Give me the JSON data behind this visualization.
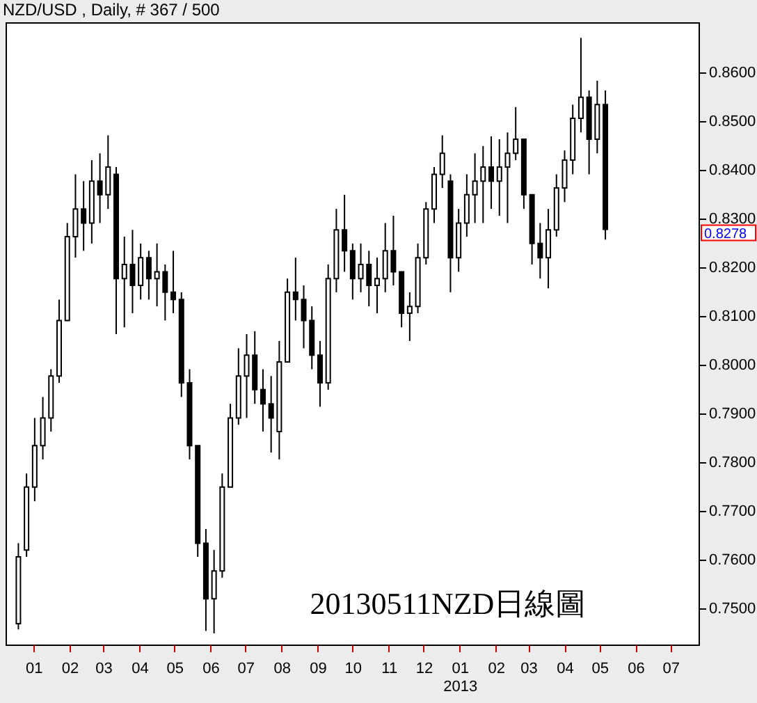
{
  "chart_data": {
    "type": "candlestick",
    "title": "NZD/USD , Daily, # 367 / 500",
    "color": "#000000",
    "x": [
      "2011-12-19",
      "2011-12-26",
      "2012-01-02",
      "2012-01-09",
      "2012-01-16",
      "2012-01-23",
      "2012-01-30",
      "2012-02-06",
      "2012-02-13",
      "2012-02-20",
      "2012-02-27",
      "2012-03-05",
      "2012-03-12",
      "2012-03-19",
      "2012-03-26",
      "2012-04-02",
      "2012-04-09",
      "2012-04-16",
      "2012-04-23",
      "2012-04-30",
      "2012-05-07",
      "2012-05-14",
      "2012-05-21",
      "2012-05-28",
      "2012-06-04",
      "2012-06-11",
      "2012-06-18",
      "2012-06-25",
      "2012-07-02",
      "2012-07-09",
      "2012-07-16",
      "2012-07-23",
      "2012-07-30",
      "2012-08-06",
      "2012-08-13",
      "2012-08-20",
      "2012-08-27",
      "2012-09-03",
      "2012-09-10",
      "2012-09-17",
      "2012-09-24",
      "2012-10-01",
      "2012-10-08",
      "2012-10-15",
      "2012-10-22",
      "2012-10-29",
      "2012-11-05",
      "2012-11-12",
      "2012-11-19",
      "2012-11-26",
      "2012-12-03",
      "2012-12-10",
      "2012-12-17",
      "2012-12-24",
      "2012-12-31",
      "2013-01-07",
      "2013-01-14",
      "2013-01-21",
      "2013-01-28",
      "2013-02-04",
      "2013-02-11",
      "2013-02-18",
      "2013-02-25",
      "2013-03-04",
      "2013-03-11",
      "2013-03-18",
      "2013-03-25",
      "2013-04-01",
      "2013-04-08",
      "2013-04-15",
      "2013-04-22",
      "2013-04-29",
      "2013-05-06"
    ],
    "ohlc": [
      [
        0.7469,
        0.7634,
        0.7457,
        0.7606
      ],
      [
        0.762,
        0.7777,
        0.7606,
        0.7749
      ],
      [
        0.7749,
        0.7891,
        0.772,
        0.7834
      ],
      [
        0.7834,
        0.7934,
        0.7806,
        0.7891
      ],
      [
        0.7891,
        0.7991,
        0.7863,
        0.7977
      ],
      [
        0.7977,
        0.8134,
        0.7963,
        0.8091
      ],
      [
        0.8091,
        0.8291,
        0.8091,
        0.8263
      ],
      [
        0.8263,
        0.8391,
        0.822,
        0.832
      ],
      [
        0.832,
        0.8377,
        0.8234,
        0.8291
      ],
      [
        0.8291,
        0.842,
        0.8249,
        0.8377
      ],
      [
        0.8377,
        0.8434,
        0.8291,
        0.8349
      ],
      [
        0.8349,
        0.8471,
        0.832,
        0.8406
      ],
      [
        0.8391,
        0.8406,
        0.8063,
        0.8177
      ],
      [
        0.8177,
        0.8263,
        0.8077,
        0.8206
      ],
      [
        0.8206,
        0.8277,
        0.8106,
        0.8163
      ],
      [
        0.8163,
        0.8249,
        0.8134,
        0.822
      ],
      [
        0.822,
        0.8234,
        0.8134,
        0.8177
      ],
      [
        0.8177,
        0.8249,
        0.812,
        0.8191
      ],
      [
        0.8191,
        0.8206,
        0.8091,
        0.8149
      ],
      [
        0.8149,
        0.8234,
        0.8106,
        0.8134
      ],
      [
        0.8134,
        0.8149,
        0.7934,
        0.7963
      ],
      [
        0.7963,
        0.7991,
        0.7806,
        0.7834
      ],
      [
        0.7834,
        0.7834,
        0.7606,
        0.7634
      ],
      [
        0.7634,
        0.7663,
        0.7454,
        0.752
      ],
      [
        0.752,
        0.762,
        0.7449,
        0.7577
      ],
      [
        0.7577,
        0.7777,
        0.7563,
        0.7749
      ],
      [
        0.7749,
        0.792,
        0.7749,
        0.7891
      ],
      [
        0.7891,
        0.8034,
        0.7877,
        0.7977
      ],
      [
        0.7977,
        0.8063,
        0.7891,
        0.802
      ],
      [
        0.802,
        0.8069,
        0.792,
        0.7949
      ],
      [
        0.7949,
        0.7991,
        0.7863,
        0.792
      ],
      [
        0.792,
        0.7977,
        0.782,
        0.7891
      ],
      [
        0.7863,
        0.8049,
        0.7806,
        0.8006
      ],
      [
        0.8006,
        0.8177,
        0.8006,
        0.8149
      ],
      [
        0.8149,
        0.822,
        0.8091,
        0.8134
      ],
      [
        0.8134,
        0.8163,
        0.8034,
        0.8091
      ],
      [
        0.8091,
        0.812,
        0.7991,
        0.802
      ],
      [
        0.802,
        0.8049,
        0.7914,
        0.7963
      ],
      [
        0.7963,
        0.8206,
        0.7949,
        0.8177
      ],
      [
        0.8177,
        0.832,
        0.8149,
        0.8277
      ],
      [
        0.8277,
        0.8349,
        0.8191,
        0.8234
      ],
      [
        0.8234,
        0.8249,
        0.8134,
        0.8177
      ],
      [
        0.8177,
        0.8249,
        0.8149,
        0.8206
      ],
      [
        0.8206,
        0.8234,
        0.812,
        0.8163
      ],
      [
        0.8163,
        0.822,
        0.8106,
        0.8177
      ],
      [
        0.8177,
        0.8291,
        0.8149,
        0.8234
      ],
      [
        0.8234,
        0.8306,
        0.8163,
        0.8191
      ],
      [
        0.8191,
        0.8191,
        0.8077,
        0.8106
      ],
      [
        0.8106,
        0.8149,
        0.8049,
        0.812
      ],
      [
        0.812,
        0.8249,
        0.8106,
        0.822
      ],
      [
        0.822,
        0.8334,
        0.8206,
        0.832
      ],
      [
        0.832,
        0.8406,
        0.8291,
        0.8391
      ],
      [
        0.8391,
        0.8471,
        0.8363,
        0.8434
      ],
      [
        0.8377,
        0.8391,
        0.8149,
        0.822
      ],
      [
        0.822,
        0.832,
        0.8191,
        0.8291
      ],
      [
        0.8291,
        0.8391,
        0.8263,
        0.8349
      ],
      [
        0.8349,
        0.8434,
        0.8291,
        0.8377
      ],
      [
        0.8377,
        0.8449,
        0.8291,
        0.8406
      ],
      [
        0.8406,
        0.8469,
        0.832,
        0.8377
      ],
      [
        0.8377,
        0.8463,
        0.8306,
        0.8406
      ],
      [
        0.8406,
        0.8477,
        0.8291,
        0.8434
      ],
      [
        0.8434,
        0.8529,
        0.842,
        0.8463
      ],
      [
        0.8463,
        0.8463,
        0.832,
        0.8349
      ],
      [
        0.8349,
        0.8349,
        0.8206,
        0.8249
      ],
      [
        0.8249,
        0.8291,
        0.8177,
        0.822
      ],
      [
        0.822,
        0.832,
        0.8157,
        0.8277
      ],
      [
        0.8277,
        0.8391,
        0.8263,
        0.8363
      ],
      [
        0.8363,
        0.844,
        0.8334,
        0.842
      ],
      [
        0.842,
        0.8534,
        0.8391,
        0.8506
      ],
      [
        0.8506,
        0.8671,
        0.8477,
        0.8549
      ],
      [
        0.8549,
        0.8563,
        0.8391,
        0.8463
      ],
      [
        0.8463,
        0.8583,
        0.8434,
        0.8534
      ],
      [
        0.8534,
        0.8563,
        0.8257,
        0.8278
      ]
    ],
    "xlim": [
      "2011-12-08",
      "2013-07-25"
    ],
    "xticks": [
      {
        "value": "2012-01-01",
        "label": "01"
      },
      {
        "value": "2012-02-01",
        "label": "02"
      },
      {
        "value": "2012-03-01",
        "label": "03"
      },
      {
        "value": "2012-04-01",
        "label": "04"
      },
      {
        "value": "2012-05-01",
        "label": "05"
      },
      {
        "value": "2012-06-01",
        "label": "06"
      },
      {
        "value": "2012-07-01",
        "label": "07"
      },
      {
        "value": "2012-08-01",
        "label": "08"
      },
      {
        "value": "2012-09-01",
        "label": "09"
      },
      {
        "value": "2012-10-01",
        "label": "10"
      },
      {
        "value": "2012-11-01",
        "label": "11"
      },
      {
        "value": "2012-12-01",
        "label": "12"
      },
      {
        "value": "2013-01-01",
        "label": "01\n2013"
      },
      {
        "value": "2013-02-01",
        "label": "02"
      },
      {
        "value": "2013-03-01",
        "label": "03"
      },
      {
        "value": "2013-04-01",
        "label": "04"
      },
      {
        "value": "2013-05-01",
        "label": "05"
      },
      {
        "value": "2013-06-01",
        "label": "06"
      },
      {
        "value": "2013-07-01",
        "label": "07"
      }
    ],
    "ylim": [
      0.7426,
      0.8703
    ],
    "yticks": [
      {
        "value": 0.75,
        "label": "0.7500"
      },
      {
        "value": 0.76,
        "label": "0.7600"
      },
      {
        "value": 0.77,
        "label": "0.7700"
      },
      {
        "value": 0.78,
        "label": "0.7800"
      },
      {
        "value": 0.79,
        "label": "0.7900"
      },
      {
        "value": 0.8,
        "label": "0.8000"
      },
      {
        "value": 0.81,
        "label": "0.8100"
      },
      {
        "value": 0.82,
        "label": "0.8200"
      },
      {
        "value": 0.83,
        "label": "0.8300"
      },
      {
        "value": 0.84,
        "label": "0.8400"
      },
      {
        "value": 0.85,
        "label": "0.8500"
      },
      {
        "value": 0.86,
        "label": "0.8600"
      }
    ],
    "annotations": [
      "0.8278",
      "20130511NZD日線圖"
    ]
  }
}
